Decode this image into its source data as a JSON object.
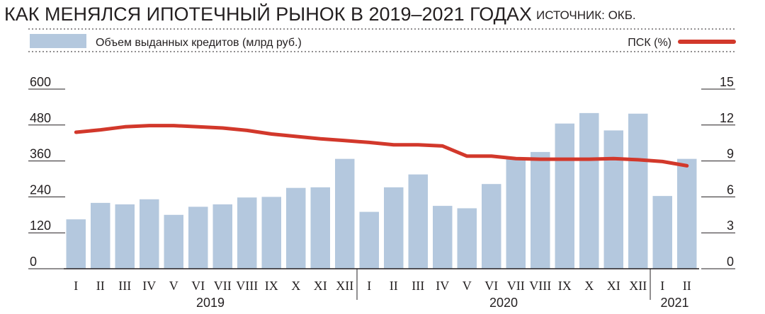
{
  "header": {
    "title": "КАК МЕНЯЛСЯ ИПОТЕЧНЫЙ РЫНОК В 2019–2021 ГОДАХ",
    "source": "ИСТОЧНИК: ОКБ."
  },
  "colors": {
    "bar": "#b4c8de",
    "line": "#d2382b",
    "text": "#231f20",
    "axis": "#231f20"
  },
  "chart_data": {
    "type": "bar",
    "categories": [
      "I",
      "II",
      "III",
      "IV",
      "V",
      "VI",
      "VII",
      "VIII",
      "IX",
      "X",
      "XI",
      "XII",
      "I",
      "II",
      "III",
      "IV",
      "V",
      "VI",
      "VII",
      "VIII",
      "IX",
      "X",
      "XI",
      "XII",
      "I",
      "II"
    ],
    "years": [
      {
        "label": "2019",
        "count": 12
      },
      {
        "label": "2020",
        "count": 12
      },
      {
        "label": "2021",
        "count": 2
      }
    ],
    "series": [
      {
        "name": "Объем выданных кредитов (млрд руб.)",
        "type": "bar",
        "axis": "left",
        "values": [
          165,
          220,
          215,
          232,
          180,
          207,
          215,
          238,
          240,
          270,
          272,
          367,
          190,
          272,
          315,
          210,
          202,
          283,
          365,
          390,
          485,
          520,
          462,
          518,
          243,
          367
        ]
      },
      {
        "name": "ПСК (%)",
        "type": "line",
        "axis": "right",
        "values": [
          11.4,
          11.6,
          11.85,
          11.95,
          11.95,
          11.85,
          11.75,
          11.55,
          11.25,
          11.05,
          10.85,
          10.7,
          10.55,
          10.35,
          10.35,
          10.25,
          9.4,
          9.4,
          9.2,
          9.15,
          9.15,
          9.15,
          9.2,
          9.1,
          8.95,
          8.6
        ]
      }
    ],
    "y_left": {
      "min": 0,
      "max": 600,
      "ticks": [
        0,
        120,
        240,
        360,
        480,
        600
      ]
    },
    "y_right": {
      "min": 0,
      "max": 15,
      "ticks": [
        0,
        3,
        6,
        9,
        12,
        15
      ]
    },
    "legend_position": "top",
    "grid": false
  }
}
